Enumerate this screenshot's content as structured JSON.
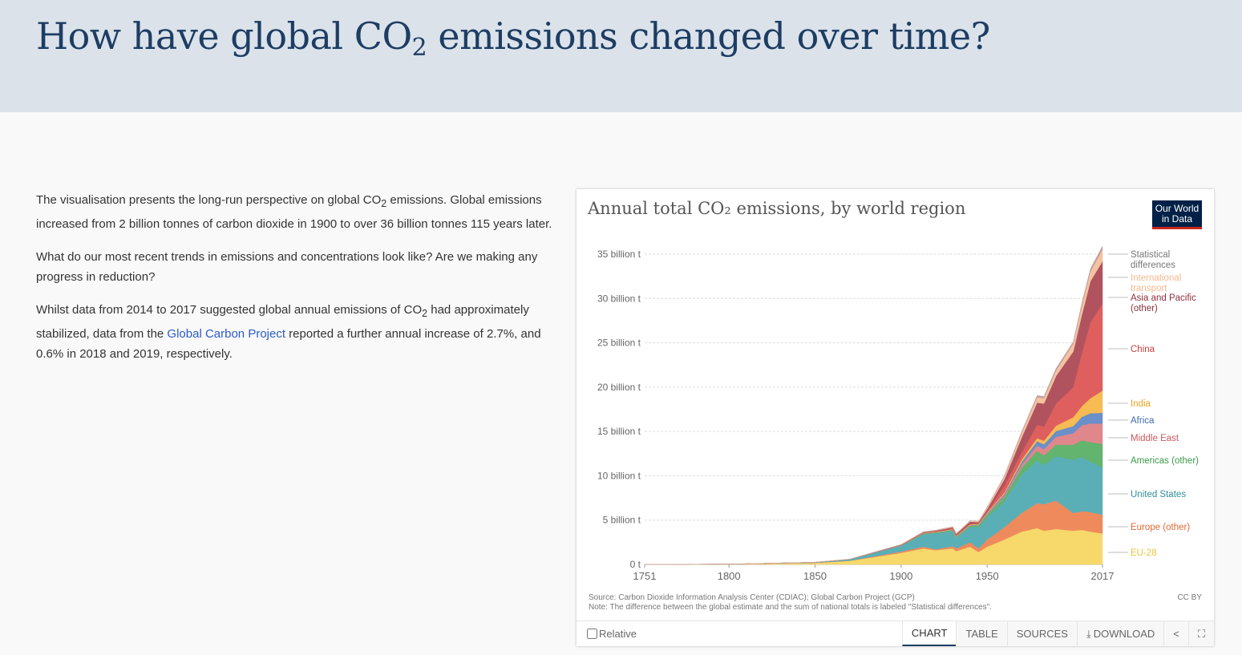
{
  "header": {
    "title_pre": "How have global CO",
    "title_sub": "2",
    "title_post": " emissions changed over time?"
  },
  "text": {
    "p1_a": "The visualisation presents the long-run perspective on global CO",
    "p1_sub": "2",
    "p1_b": " emissions. Global emissions increased from 2 billion tonnes of carbon dioxide in 1900 to over 36 billion tonnes 115 years later.",
    "p2": "What do our most recent trends in emissions and concentrations look like? Are we making any progress in reduction?",
    "p3_a": "Whilst data from 2014 to 2017 suggested global annual emissions of CO",
    "p3_sub": "2",
    "p3_b": " had approximately stabilized, data from the ",
    "p3_link": "Global Carbon Project",
    "p3_c": " reported a further annual increase of 2.7%, and 0.6% in 2018 and 2019, respectively."
  },
  "card": {
    "logo_line1": "Our World",
    "logo_line2": "in Data",
    "source": "Source: Carbon Dioxide Information Analysis Center (CDIAC); Global Carbon Project (GCP)",
    "note": "Note: The difference between the global estimate and the sum of national totals is labeled \"Statistical differences\".",
    "license": "CC BY",
    "relative_label": "Relative",
    "tabs": [
      "CHART",
      "TABLE",
      "SOURCES",
      "DOWNLOAD"
    ],
    "active_tab": "CHART",
    "icons": [
      "download-icon",
      "share-icon",
      "fullscreen-icon"
    ]
  },
  "chart_data": {
    "type": "area",
    "stacked": true,
    "title": "Annual total CO₂ emissions, by world region",
    "yticks": [
      "0 t",
      "5 billion t",
      "10 billion t",
      "15 billion t",
      "20 billion t",
      "25 billion t",
      "30 billion t",
      "35 billion t"
    ],
    "ytick_values": [
      0,
      5,
      10,
      15,
      20,
      25,
      30,
      35
    ],
    "xticks": [
      "1751",
      "1800",
      "1850",
      "1900",
      "1950",
      "2017"
    ],
    "xtick_values": [
      1751,
      1800,
      1850,
      1900,
      1950,
      2017
    ],
    "xlim": [
      1751,
      2017
    ],
    "ylim": [
      0,
      35
    ],
    "unit": "billion t",
    "grid": "horizontal dashed",
    "legend_placement": "right",
    "x": [
      1751,
      1800,
      1850,
      1870,
      1900,
      1913,
      1920,
      1930,
      1932,
      1940,
      1945,
      1950,
      1960,
      1970,
      1979,
      1983,
      1990,
      2000,
      2005,
      2010,
      2017
    ],
    "series": [
      {
        "name": "EU-28",
        "color": "#f7d86a",
        "values": [
          0.01,
          0.03,
          0.18,
          0.4,
          1.3,
          1.8,
          1.6,
          1.8,
          1.5,
          2.0,
          1.4,
          2.0,
          2.8,
          3.7,
          4.1,
          3.8,
          4.0,
          3.8,
          3.9,
          3.7,
          3.5
        ]
      },
      {
        "name": "Europe (other)",
        "color": "#ef8a5c",
        "values": [
          0,
          0,
          0.01,
          0.02,
          0.15,
          0.2,
          0.1,
          0.25,
          0.3,
          0.5,
          0.4,
          0.8,
          1.4,
          2.1,
          2.8,
          3.0,
          3.2,
          2.0,
          2.1,
          2.2,
          2.1
        ]
      },
      {
        "name": "United States",
        "color": "#5aafb7",
        "values": [
          0,
          0,
          0.05,
          0.15,
          0.66,
          1.4,
          1.8,
          1.7,
          1.2,
          1.7,
          2.4,
          2.5,
          2.9,
          4.3,
          4.8,
          4.4,
          5.0,
          6.0,
          6.1,
          5.7,
          5.3
        ]
      },
      {
        "name": "Americas (other)",
        "color": "#62b46e",
        "values": [
          0,
          0,
          0,
          0.005,
          0.03,
          0.08,
          0.1,
          0.12,
          0.1,
          0.15,
          0.2,
          0.3,
          0.5,
          0.8,
          1.1,
          1.1,
          1.3,
          1.7,
          1.9,
          2.2,
          2.7
        ]
      },
      {
        "name": "Middle East",
        "color": "#df878b",
        "values": [
          0,
          0,
          0,
          0,
          0,
          0,
          0.005,
          0.01,
          0.01,
          0.02,
          0.03,
          0.06,
          0.15,
          0.35,
          0.6,
          0.7,
          0.9,
          1.3,
          1.7,
          2.1,
          2.3
        ]
      },
      {
        "name": "Africa",
        "color": "#6a8fc9",
        "values": [
          0,
          0,
          0,
          0,
          0.01,
          0.02,
          0.02,
          0.04,
          0.04,
          0.05,
          0.06,
          0.1,
          0.2,
          0.3,
          0.5,
          0.55,
          0.65,
          0.8,
          0.95,
          1.15,
          1.2
        ]
      },
      {
        "name": "India",
        "color": "#f6bb52",
        "values": [
          0,
          0,
          0,
          0,
          0.02,
          0.04,
          0.05,
          0.06,
          0.06,
          0.08,
          0.08,
          0.1,
          0.15,
          0.25,
          0.35,
          0.4,
          0.6,
          1.0,
          1.2,
          1.7,
          2.5
        ]
      },
      {
        "name": "China",
        "color": "#df5e5e",
        "values": [
          0,
          0,
          0,
          0,
          0.01,
          0.02,
          0.03,
          0.05,
          0.06,
          0.07,
          0.05,
          0.08,
          0.8,
          0.8,
          1.5,
          1.6,
          2.5,
          3.4,
          6.0,
          8.6,
          9.8
        ]
      },
      {
        "name": "Asia and Pacific (other)",
        "color": "#b0535f",
        "values": [
          0,
          0,
          0,
          0.01,
          0.04,
          0.08,
          0.1,
          0.15,
          0.15,
          0.25,
          0.15,
          0.3,
          0.7,
          1.7,
          2.5,
          2.6,
          3.1,
          4.0,
          4.3,
          4.6,
          4.8
        ]
      },
      {
        "name": "International transport",
        "color": "#f4c3a0",
        "values": [
          0,
          0,
          0,
          0,
          0.02,
          0.05,
          0.05,
          0.07,
          0.06,
          0.1,
          0.1,
          0.18,
          0.3,
          0.5,
          0.6,
          0.6,
          0.6,
          0.9,
          1.0,
          1.1,
          1.3
        ]
      },
      {
        "name": "Statistical differences",
        "color": "#c4a2a2",
        "values": [
          0,
          0,
          0,
          0,
          0,
          0,
          0,
          0,
          0,
          0,
          0,
          0.05,
          0.1,
          0.15,
          0.2,
          0.2,
          0.25,
          0.2,
          0.3,
          0.3,
          0.4
        ]
      }
    ],
    "legend_labels": [
      {
        "lines": [
          "Statistical",
          "differences"
        ],
        "color": "#777777"
      },
      {
        "lines": [
          "International",
          "transport"
        ],
        "color": "#f4b88f"
      },
      {
        "lines": [
          "Asia and Pacific",
          "(other)"
        ],
        "color": "#8f2f3c"
      },
      {
        "lines": [
          "China"
        ],
        "color": "#c9403f"
      },
      {
        "lines": [
          "India"
        ],
        "color": "#e8a21e"
      },
      {
        "lines": [
          "Africa"
        ],
        "color": "#3f6bb0"
      },
      {
        "lines": [
          "Middle East"
        ],
        "color": "#c85a5f"
      },
      {
        "lines": [
          "Americas (other)"
        ],
        "color": "#3c9a4a"
      },
      {
        "lines": [
          "United States"
        ],
        "color": "#2e8f99"
      },
      {
        "lines": [
          "Europe (other)"
        ],
        "color": "#e06a34"
      },
      {
        "lines": [
          "EU-28"
        ],
        "color": "#e8c53a"
      }
    ]
  }
}
